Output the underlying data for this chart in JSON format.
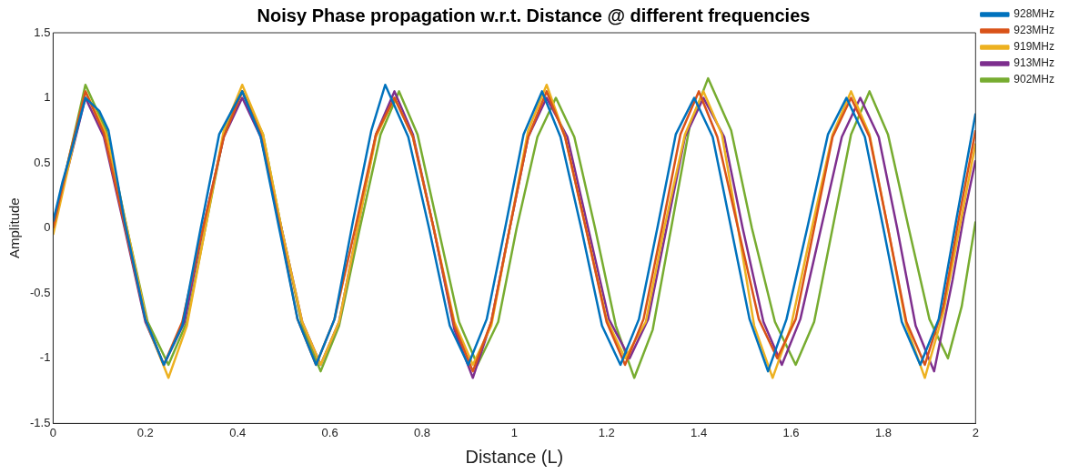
{
  "chart_data": {
    "type": "line",
    "title": "Noisy Phase propagation w.r.t. Distance @ different frequencies",
    "xlabel": "Distance (L)",
    "ylabel": "Amplitude",
    "xlim": [
      0,
      2
    ],
    "xticks": [
      0,
      0.2,
      0.4,
      0.6,
      0.8,
      1,
      1.2,
      1.4,
      1.6,
      1.8,
      2
    ],
    "ylim": [
      -1.5,
      1.5
    ],
    "yticks": [
      -1.5,
      -1,
      -0.5,
      0,
      0.5,
      1,
      1.5
    ],
    "grid": false,
    "legend": "top right",
    "marker": "none",
    "line_style": "solid",
    "series": [
      {
        "name": "928MHz",
        "color": "#0072bd",
        "x": [
          0,
          0.02,
          0.04,
          0.07,
          0.1,
          0.12,
          0.155,
          0.2,
          0.24,
          0.28,
          0.32,
          0.36,
          0.41,
          0.45,
          0.49,
          0.53,
          0.57,
          0.61,
          0.65,
          0.69,
          0.72,
          0.77,
          0.815,
          0.86,
          0.9,
          0.94,
          0.98,
          1.02,
          1.06,
          1.1,
          1.145,
          1.19,
          1.23,
          1.27,
          1.31,
          1.35,
          1.39,
          1.43,
          1.47,
          1.51,
          1.55,
          1.59,
          1.635,
          1.68,
          1.72,
          1.76,
          1.8,
          1.84,
          1.88,
          1.92,
          1.96,
          2
        ],
        "values": [
          0.05,
          0.35,
          0.6,
          1,
          0.9,
          0.75,
          0.05,
          -0.7,
          -1.05,
          -0.75,
          0,
          0.72,
          1.05,
          0.7,
          0,
          -0.7,
          -1.05,
          -0.7,
          0.05,
          0.75,
          1.1,
          0.7,
          0,
          -0.75,
          -1.05,
          -0.7,
          0,
          0.72,
          1.05,
          0.7,
          0,
          -0.75,
          -1.05,
          -0.7,
          0,
          0.72,
          1,
          0.7,
          0,
          -0.7,
          -1.1,
          -0.7,
          0,
          0.72,
          1,
          0.7,
          0,
          -0.72,
          -1.05,
          -0.7,
          0.1,
          0.88
        ]
      },
      {
        "name": "923MHz",
        "color": "#d95319",
        "x": [
          0,
          0.035,
          0.07,
          0.11,
          0.155,
          0.2,
          0.24,
          0.28,
          0.325,
          0.37,
          0.41,
          0.45,
          0.49,
          0.53,
          0.57,
          0.61,
          0.655,
          0.7,
          0.74,
          0.78,
          0.825,
          0.87,
          0.91,
          0.95,
          0.99,
          1.03,
          1.07,
          1.11,
          1.155,
          1.2,
          1.24,
          1.28,
          1.32,
          1.36,
          1.4,
          1.44,
          1.485,
          1.53,
          1.57,
          1.61,
          1.65,
          1.69,
          1.73,
          1.77,
          1.81,
          1.85,
          1.89,
          1.93,
          1.965,
          2
        ],
        "values": [
          0,
          0.55,
          1.05,
          0.73,
          0.02,
          -0.7,
          -1.05,
          -0.72,
          0,
          0.7,
          1.05,
          0.72,
          0.03,
          -0.7,
          -1.05,
          -0.7,
          0,
          0.72,
          1,
          0.7,
          0,
          -0.75,
          -1.1,
          -0.72,
          0,
          0.7,
          1.05,
          0.7,
          0,
          -0.72,
          -1.05,
          -0.7,
          0,
          0.72,
          1.05,
          0.7,
          0,
          -0.7,
          -1,
          -0.7,
          0,
          0.7,
          1,
          0.7,
          0,
          -0.72,
          -1.05,
          -0.6,
          0.1,
          0.75
        ]
      },
      {
        "name": "919MHz",
        "color": "#edb120",
        "x": [
          0,
          0.035,
          0.07,
          0.115,
          0.16,
          0.205,
          0.25,
          0.29,
          0.33,
          0.37,
          0.41,
          0.455,
          0.495,
          0.54,
          0.58,
          0.62,
          0.66,
          0.7,
          0.74,
          0.78,
          0.825,
          0.87,
          0.91,
          0.95,
          0.99,
          1.03,
          1.07,
          1.11,
          1.155,
          1.2,
          1.24,
          1.285,
          1.325,
          1.37,
          1.41,
          1.45,
          1.485,
          1.52,
          1.56,
          1.6,
          1.645,
          1.69,
          1.73,
          1.77,
          1.81,
          1.85,
          1.89,
          1.93,
          1.965,
          2
        ],
        "values": [
          -0.05,
          0.5,
          1.05,
          0.72,
          0,
          -0.75,
          -1.15,
          -0.75,
          0,
          0.75,
          1.1,
          0.72,
          0,
          -0.72,
          -1.05,
          -0.72,
          0,
          0.7,
          1,
          0.7,
          0,
          -0.72,
          -1.05,
          -0.75,
          0,
          0.75,
          1.1,
          0.7,
          0,
          -0.7,
          -1,
          -0.72,
          0,
          0.72,
          1.05,
          0.72,
          0,
          -0.75,
          -1.15,
          -0.75,
          0,
          0.72,
          1.05,
          0.72,
          0,
          -0.75,
          -1.15,
          -0.65,
          0,
          0.65
        ]
      },
      {
        "name": "913MHz",
        "color": "#7e2f8e",
        "x": [
          0,
          0.035,
          0.07,
          0.11,
          0.155,
          0.2,
          0.24,
          0.285,
          0.325,
          0.37,
          0.41,
          0.45,
          0.495,
          0.54,
          0.58,
          0.62,
          0.66,
          0.7,
          0.74,
          0.78,
          0.825,
          0.87,
          0.91,
          0.95,
          0.99,
          1.03,
          1.07,
          1.115,
          1.16,
          1.205,
          1.25,
          1.29,
          1.33,
          1.37,
          1.41,
          1.455,
          1.495,
          1.54,
          1.58,
          1.62,
          1.665,
          1.71,
          1.75,
          1.79,
          1.83,
          1.87,
          1.91,
          1.95,
          1.975,
          2
        ],
        "values": [
          0.05,
          0.5,
          1,
          0.7,
          0,
          -0.72,
          -1.05,
          -0.72,
          0,
          0.7,
          1,
          0.7,
          0,
          -0.72,
          -1.05,
          -0.72,
          0,
          0.72,
          1.05,
          0.72,
          0,
          -0.78,
          -1.15,
          -0.72,
          0,
          0.7,
          1,
          0.7,
          0,
          -0.7,
          -1,
          -0.7,
          0,
          0.7,
          1,
          0.7,
          0,
          -0.72,
          -1.05,
          -0.7,
          0,
          0.7,
          1,
          0.7,
          0,
          -0.75,
          -1.1,
          -0.4,
          0.1,
          0.52
        ]
      },
      {
        "name": "902MHz",
        "color": "#77ac30",
        "x": [
          0,
          0.035,
          0.07,
          0.115,
          0.16,
          0.205,
          0.25,
          0.29,
          0.33,
          0.37,
          0.41,
          0.455,
          0.495,
          0.54,
          0.58,
          0.62,
          0.665,
          0.71,
          0.75,
          0.79,
          0.835,
          0.88,
          0.92,
          0.965,
          1.005,
          1.05,
          1.09,
          1.13,
          1.175,
          1.22,
          1.26,
          1.3,
          1.34,
          1.38,
          1.42,
          1.47,
          1.515,
          1.565,
          1.61,
          1.65,
          1.69,
          1.73,
          1.77,
          1.81,
          1.855,
          1.9,
          1.94,
          1.97,
          2
        ],
        "values": [
          0,
          0.55,
          1.1,
          0.75,
          0,
          -0.72,
          -1.05,
          -0.72,
          0,
          0.72,
          1.05,
          0.72,
          0,
          -0.75,
          -1.1,
          -0.75,
          0,
          0.72,
          1.05,
          0.72,
          0,
          -0.72,
          -1.05,
          -0.72,
          0,
          0.7,
          1,
          0.7,
          0,
          -0.75,
          -1.15,
          -0.78,
          0,
          0.78,
          1.15,
          0.75,
          0,
          -0.72,
          -1.05,
          -0.72,
          0,
          0.72,
          1.05,
          0.72,
          0,
          -0.7,
          -1,
          -0.6,
          0.05
        ]
      }
    ]
  }
}
